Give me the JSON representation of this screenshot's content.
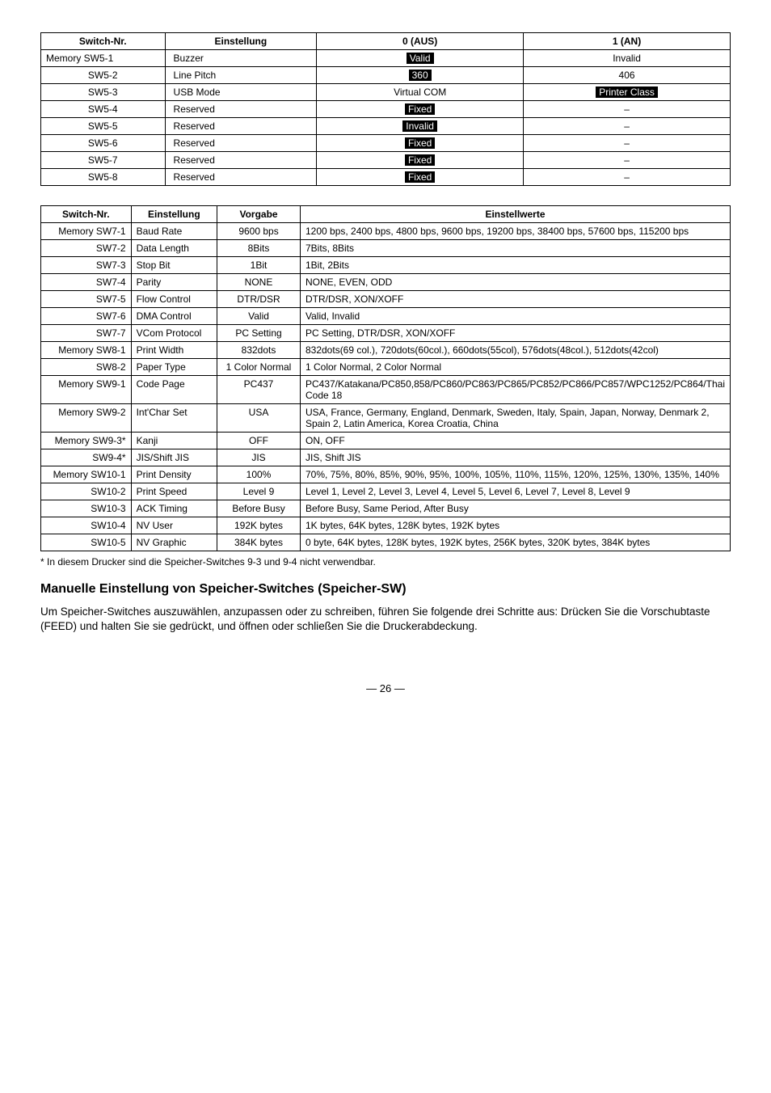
{
  "table1": {
    "headers": [
      "Switch-Nr.",
      "Einstellung",
      "0 (AUS)",
      "1 (AN)"
    ],
    "rows": [
      {
        "c": [
          "Memory SW5-1",
          "Buzzer",
          {
            "t": "Valid",
            "inv": true
          },
          "Invalid"
        ],
        "align0": "left"
      },
      {
        "c": [
          "SW5-2",
          "Line Pitch",
          {
            "t": "360",
            "inv": true
          },
          "406"
        ]
      },
      {
        "c": [
          "SW5-3",
          "USB Mode",
          "Virtual COM",
          {
            "t": "Printer Class",
            "inv": true
          }
        ]
      },
      {
        "c": [
          "SW5-4",
          "Reserved",
          {
            "t": "Fixed",
            "inv": true
          },
          "–"
        ]
      },
      {
        "c": [
          "SW5-5",
          "Reserved",
          {
            "t": "Invalid",
            "inv": true
          },
          "–"
        ]
      },
      {
        "c": [
          "SW5-6",
          "Reserved",
          {
            "t": "Fixed",
            "inv": true
          },
          "–"
        ]
      },
      {
        "c": [
          "SW5-7",
          "Reserved",
          {
            "t": "Fixed",
            "inv": true
          },
          "–"
        ]
      },
      {
        "c": [
          "SW5-8",
          "Reserved",
          {
            "t": "Fixed",
            "inv": true
          },
          "–"
        ]
      }
    ]
  },
  "table2": {
    "headers": [
      "Switch-Nr.",
      "Einstellung",
      "Vorgabe",
      "Einstellwerte"
    ],
    "groups": [
      [
        {
          "c": [
            "Memory SW7-1",
            "Baud Rate",
            "9600 bps",
            "1200 bps, 2400 bps, 4800 bps, 9600 bps, 19200 bps, 38400 bps, 57600 bps, 115200 bps"
          ]
        },
        {
          "c": [
            "SW7-2",
            "Data Length",
            "8Bits",
            "7Bits, 8Bits"
          ]
        },
        {
          "c": [
            "SW7-3",
            "Stop Bit",
            "1Bit",
            "1Bit, 2Bits"
          ]
        },
        {
          "c": [
            "SW7-4",
            "Parity",
            "NONE",
            "NONE, EVEN, ODD"
          ]
        },
        {
          "c": [
            "SW7-5",
            "Flow Control",
            "DTR/DSR",
            "DTR/DSR, XON/XOFF"
          ]
        },
        {
          "c": [
            "SW7-6",
            "DMA Control",
            "Valid",
            "Valid, Invalid"
          ]
        },
        {
          "c": [
            "SW7-7",
            "VCom Protocol",
            "PC Setting",
            "PC Setting, DTR/DSR, XON/XOFF"
          ]
        }
      ],
      [
        {
          "c": [
            "Memory SW8-1",
            "Print Width",
            "832dots",
            "832dots(69 col.), 720dots(60col.), 660dots(55col), 576dots(48col.), 512dots(42col)"
          ]
        },
        {
          "c": [
            "SW8-2",
            "Paper Type",
            "1 Color Normal",
            "1 Color Normal, 2 Color Normal"
          ]
        }
      ],
      [
        {
          "c": [
            "Memory SW9-1",
            "Code Page",
            "PC437",
            "PC437/Katakana/PC850,858/PC860/PC863/PC865/PC852/PC866/PC857/WPC1252/PC864/Thai Code 18"
          ]
        },
        {
          "c": [
            "Memory SW9-2",
            "Int'Char Set",
            "USA",
            "USA, France, Germany, England, Denmark, Sweden, Italy, Spain, Japan, Norway, Denmark 2, Spain 2, Latin America, Korea Croatia, China"
          ]
        },
        {
          "c": [
            "Memory SW9-3*",
            "Kanji",
            "OFF",
            "ON, OFF"
          ]
        },
        {
          "c": [
            "SW9-4*",
            "JIS/Shift JIS",
            "JIS",
            "JIS, Shift JIS"
          ]
        }
      ],
      [
        {
          "c": [
            "Memory SW10-1",
            "Print Density",
            "100%",
            "70%, 75%, 80%, 85%, 90%, 95%, 100%, 105%, 110%, 115%, 120%, 125%, 130%, 135%, 140%"
          ]
        },
        {
          "c": [
            "SW10-2",
            "Print Speed",
            "Level 9",
            "Level 1, Level 2, Level 3, Level 4, Level 5, Level 6,  Level 7, Level 8, Level 9"
          ]
        },
        {
          "c": [
            "SW10-3",
            "ACK Timing",
            "Before Busy",
            "Before Busy, Same Period, After Busy"
          ]
        },
        {
          "c": [
            "SW10-4",
            "NV User",
            "192K bytes",
            "1K bytes, 64K bytes, 128K bytes, 192K bytes"
          ]
        },
        {
          "c": [
            "SW10-5",
            "NV Graphic",
            "384K bytes",
            "0 byte, 64K bytes, 128K bytes, 192K bytes, 256K bytes, 320K bytes, 384K bytes"
          ]
        }
      ]
    ]
  },
  "footnote": "* In diesem Drucker sind die Speicher-Switches 9-3 und 9-4 nicht verwendbar.",
  "heading": "Manuelle Einstellung von Speicher-Switches (Speicher-SW)",
  "paragraph": "Um Speicher-Switches auszuwählen, anzupassen oder zu schreiben, führen Sie folgende drei Schritte aus: Drücken Sie die Vorschubtaste (FEED) und halten Sie sie gedrückt, und öffnen oder schließen Sie die Druckerabdeckung.",
  "pagenum": "— 26 —"
}
